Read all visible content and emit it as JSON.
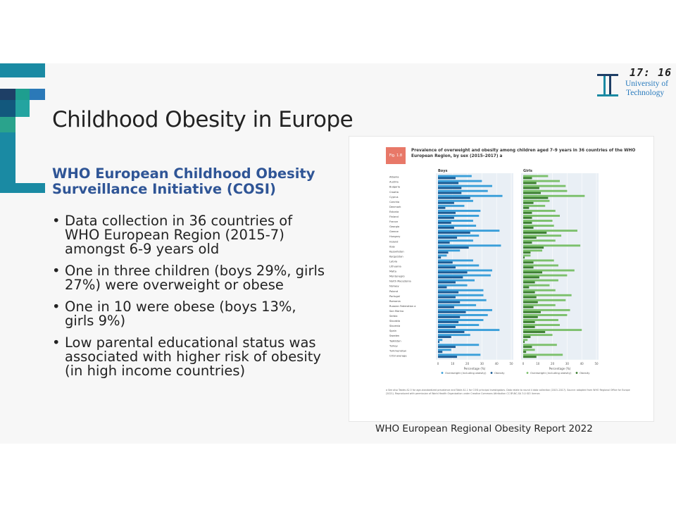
{
  "clock": "17: 16",
  "university": {
    "line1": "University of",
    "line2": "Technology"
  },
  "slide": {
    "title": "Childhood Obesity in Europe",
    "subtitle": "WHO European Childhood Obesity Surveillance Initiative (COSI)",
    "bullets": [
      "Data collection in 36 countries of WHO European Region (2015-7) amongst 6-9 years old",
      "One in three children (boys 29%, girls 27%) were overweight or obese",
      "One in 10 were obese (boys 13%, girls 9%)",
      "Low parental educational status was associated with higher risk of obesity (in high income countries)"
    ],
    "caption": "WHO European Regional Obesity Report 2022"
  },
  "colors": {
    "subtitle": "#2f5596",
    "boys_overweight": "#3a9fd9",
    "boys_obesity": "#1c5b94",
    "girls_overweight": "#7cc06c",
    "girls_obesity": "#3d7f32",
    "fig_tag": "#e87868",
    "panel_bg": "#e9eff5"
  },
  "figure": {
    "tag": "Fig. 1.8",
    "title": "Prevalence of overweight and obesity among children aged 7–9 years in 36 countries of the WHO European Region, by sex (2015–2017) a",
    "notes": "a See also Tables A2.5 for age-standardized prevalence and Table A1.1 for COSI principal investigators. Data relate to round 4 data collection (2015–2017). Source: adapted from WHO Regional Office for Europe (2021). Reproduced with permission of World Health Organization under Creative Commons Attribution CC BY-NC-SA 3.0 IGO licence."
  },
  "chart_data": [
    {
      "type": "bar",
      "title": "Boys",
      "xlabel": "Percentage (%)",
      "xlim": [
        0,
        50
      ],
      "ticks": [
        "0",
        "10",
        "20",
        "30",
        "40",
        "50"
      ],
      "legend": "bottom",
      "categories": [
        "Albania",
        "Austria",
        "Bulgaria",
        "Croatia",
        "Cyprus",
        "Czechia",
        "Denmark",
        "Estonia",
        "Finland",
        "France",
        "Georgia",
        "Greece",
        "Hungary",
        "Ireland",
        "Italy",
        "Kazakhstan",
        "Kyrgyzstan",
        "Latvia",
        "Lithuania",
        "Malta",
        "Montenegro",
        "North Macedonia",
        "Norway",
        "Poland",
        "Portugal",
        "Romania",
        "Russian Federation a",
        "San Marino",
        "Serbia",
        "Slovakia",
        "Slovenia",
        "Spain",
        "Sweden",
        "Tajikistan",
        "Turkey",
        "Turkmenistan",
        "COSI average"
      ],
      "series": [
        {
          "name": "Overweight (including obesity)",
          "values": [
            23,
            30,
            37,
            34,
            44,
            24,
            18,
            29,
            28,
            24,
            26,
            42,
            28,
            24,
            43,
            15,
            6,
            24,
            28,
            37,
            36,
            25,
            20,
            31,
            31,
            33,
            26,
            37,
            34,
            31,
            28,
            42,
            22,
            3,
            28,
            9,
            29
          ]
        },
        {
          "name": "Obesity",
          "values": [
            12,
            14,
            16,
            16,
            22,
            11,
            5,
            12,
            11,
            9,
            11,
            22,
            13,
            8,
            21,
            7,
            2,
            10,
            12,
            20,
            17,
            12,
            6,
            14,
            12,
            15,
            11,
            19,
            15,
            14,
            12,
            18,
            9,
            1,
            12,
            3,
            13
          ]
        }
      ]
    },
    {
      "type": "bar",
      "title": "Girls",
      "xlabel": "Percentage (%)",
      "xlim": [
        0,
        50
      ],
      "ticks": [
        "0",
        "10",
        "20",
        "30",
        "40",
        "50"
      ],
      "legend": "bottom",
      "categories": [
        "Albania",
        "Austria",
        "Bulgaria",
        "Croatia",
        "Cyprus",
        "Czechia",
        "Denmark",
        "Estonia",
        "Finland",
        "France",
        "Georgia",
        "Greece",
        "Hungary",
        "Ireland",
        "Italy",
        "Kazakhstan",
        "Kyrgyzstan",
        "Latvia",
        "Lithuania",
        "Malta",
        "Montenegro",
        "North Macedonia",
        "Norway",
        "Poland",
        "Portugal",
        "Romania",
        "Russian Federation a",
        "San Marino",
        "Serbia",
        "Slovakia",
        "Slovenia",
        "Spain",
        "Sweden",
        "Tajikistan",
        "Turkey",
        "Turkmenistan",
        "COSI average"
      ],
      "series": [
        {
          "name": "Overweight (including obesity)",
          "values": [
            17,
            25,
            29,
            30,
            42,
            18,
            15,
            22,
            25,
            20,
            21,
            37,
            26,
            22,
            39,
            13,
            5,
            21,
            24,
            35,
            30,
            24,
            18,
            22,
            33,
            29,
            22,
            32,
            30,
            24,
            25,
            40,
            20,
            3,
            23,
            8,
            27
          ]
        },
        {
          "name": "Obesity",
          "values": [
            6,
            9,
            11,
            12,
            17,
            7,
            4,
            6,
            6,
            6,
            7,
            16,
            9,
            6,
            14,
            5,
            1,
            7,
            7,
            13,
            11,
            8,
            4,
            8,
            9,
            10,
            7,
            12,
            10,
            8,
            8,
            15,
            5,
            1,
            6,
            2,
            9
          ]
        }
      ]
    }
  ]
}
